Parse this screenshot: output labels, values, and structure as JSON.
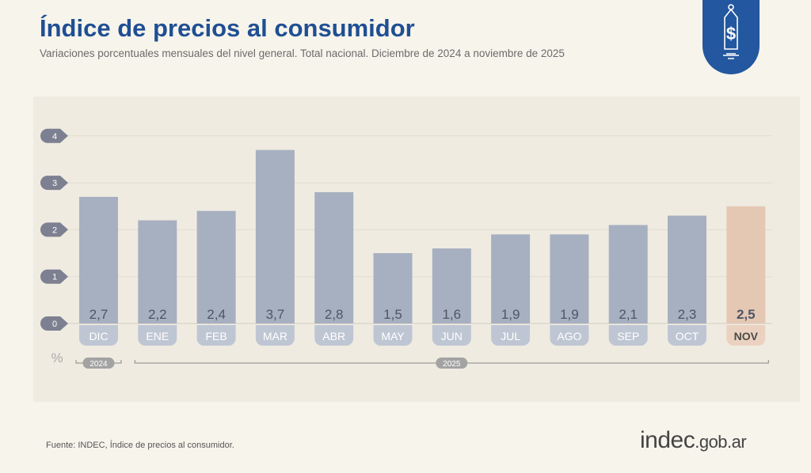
{
  "header": {
    "title": "Índice de precios al consumidor",
    "subtitle": "Variaciones porcentuales mensuales del nivel general. Total nacional. Diciembre de 2024 a noviembre de 2025"
  },
  "footer": {
    "source": "Fuente: INDEC, Índice de precios al consumidor.",
    "logo_main": "indec",
    "logo_suffix": ".gob.ar"
  },
  "chart_data": {
    "type": "bar",
    "title": "Índice de precios al consumidor",
    "ylabel": "%",
    "ylim": [
      0,
      4
    ],
    "yticks": [
      "0",
      "1",
      "2",
      "3",
      "4"
    ],
    "categories": [
      "DIC",
      "ENE",
      "FEB",
      "MAR",
      "ABR",
      "MAY",
      "JUN",
      "JUL",
      "AGO",
      "SEP",
      "OCT",
      "NOV"
    ],
    "values": [
      2.7,
      2.2,
      2.4,
      3.7,
      2.8,
      1.5,
      1.6,
      1.9,
      1.9,
      2.1,
      2.3,
      2.5
    ],
    "value_labels": [
      "2,7",
      "2,2",
      "2,4",
      "3,7",
      "2,8",
      "1,5",
      "1,6",
      "1,9",
      "1,9",
      "2,1",
      "2,3",
      "2,5"
    ],
    "year_groups": [
      {
        "label": "2024",
        "from": 0,
        "to": 0
      },
      {
        "label": "2025",
        "from": 1,
        "to": 11
      }
    ],
    "highlight_index": 11,
    "colors": {
      "bar": "#a7b0c0",
      "bar_label": "#bfc6d3",
      "highlight": "#e5c8b4",
      "highlight_label": "#ebd2c0"
    }
  }
}
